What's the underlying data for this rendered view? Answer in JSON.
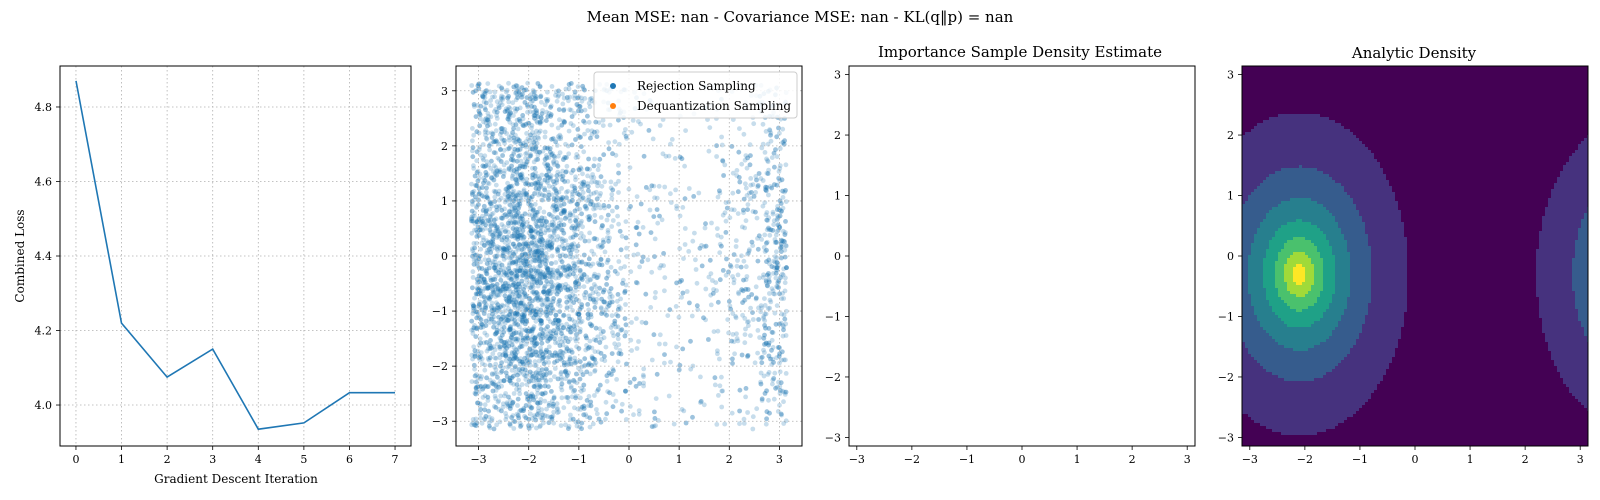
{
  "suptitle": "Mean MSE: nan - Covariance MSE: nan - KL(q‖p) = nan",
  "chart_data": [
    {
      "type": "line",
      "title": "",
      "xlabel": "Gradient Descent Iteration",
      "ylabel": "Combined Loss",
      "x": [
        0,
        1,
        2,
        3,
        4,
        5,
        6,
        7
      ],
      "y": [
        4.87,
        4.22,
        4.075,
        4.15,
        3.935,
        3.952,
        4.033,
        4.033
      ],
      "xlim": [
        -0.35,
        7.35
      ],
      "ylim": [
        3.89,
        4.91
      ],
      "xticks": [
        "0",
        "1",
        "2",
        "3",
        "4",
        "5",
        "6",
        "7"
      ],
      "yticks": [
        "4.0",
        "4.2",
        "4.4",
        "4.6",
        "4.8"
      ],
      "grid": true,
      "color": "#1f77b4"
    },
    {
      "type": "scatter",
      "title": "",
      "xlim": [
        -3.45,
        3.45
      ],
      "ylim": [
        -3.45,
        3.45
      ],
      "xticks": [
        "−3",
        "−2",
        "−1",
        "0",
        "1",
        "2",
        "3"
      ],
      "yticks": [
        "−3",
        "−2",
        "−1",
        "0",
        "1",
        "2",
        "3"
      ],
      "grid": true,
      "legend_position": "top-right",
      "series": [
        {
          "name": "Rejection Sampling",
          "color": "#1f77b4",
          "n_points": 5000,
          "description": "dense cloud concentrated near x=-2 and x=3 (wrapped), sparse near x=1"
        },
        {
          "name": "Dequantization Sampling",
          "color": "#ff7f0e",
          "n_points": 0
        }
      ]
    },
    {
      "type": "heatmap",
      "title": "Importance Sample Density Estimate",
      "xlim": [
        -3.1416,
        3.1416
      ],
      "ylim": [
        -3.1416,
        3.1416
      ],
      "xticks": [
        "−3",
        "−2",
        "−1",
        "0",
        "1",
        "2",
        "3"
      ],
      "yticks": [
        "−3",
        "−2",
        "−1",
        "0",
        "1",
        "2",
        "3"
      ],
      "values": "empty (nan)"
    },
    {
      "type": "heatmap",
      "title": "Analytic Density",
      "xlim": [
        -3.1416,
        3.1416
      ],
      "ylim": [
        -3.1416,
        3.1416
      ],
      "xticks": [
        "−3",
        "−2",
        "−1",
        "0",
        "1",
        "2",
        "3"
      ],
      "yticks": [
        "−3",
        "−2",
        "−1",
        "0",
        "1",
        "2",
        "3"
      ],
      "peak": [
        -2.1,
        -0.3
      ],
      "colormap": [
        "#440154",
        "#46327e",
        "#365c8d",
        "#277f8e",
        "#1fa187",
        "#4ac16d",
        "#a0da39",
        "#fde725"
      ]
    }
  ]
}
